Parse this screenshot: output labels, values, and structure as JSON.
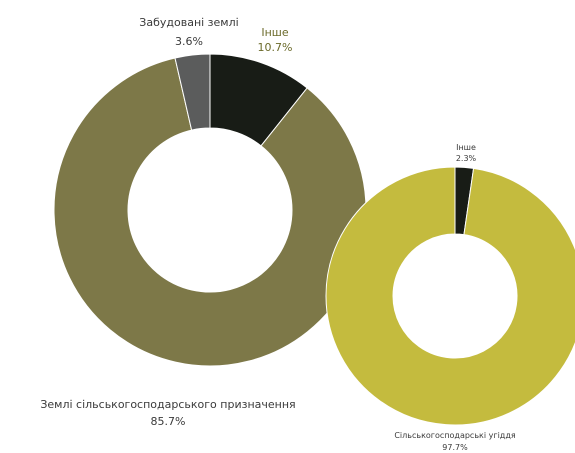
{
  "chart_data": [
    {
      "type": "pie",
      "variant": "donut",
      "slices": [
        {
          "label": "Інше",
          "value": 10.7,
          "value_label": "10.7%",
          "color": "#181c16",
          "label_color": "#6b6a2a"
        },
        {
          "label": "Землі сільськогосподарського призначення",
          "value": 85.7,
          "value_label": "85.7%",
          "color": "#7d7848",
          "label_color": "#3a3a3a"
        },
        {
          "label": "Забудовані землі",
          "value": 3.6,
          "value_label": "3.6%",
          "color": "#5b5c5c",
          "label_color": "#3a3a3a"
        }
      ]
    },
    {
      "type": "pie",
      "variant": "donut",
      "slices": [
        {
          "label": "Інше",
          "value": 2.3,
          "value_label": "2.3%",
          "color": "#181c16",
          "label_color": "#3a3a3a"
        },
        {
          "label": "Сільськогосподарські угіддя",
          "value": 97.7,
          "value_label": "97.7%",
          "color": "#c4bb3e",
          "label_color": "#3a3a3a"
        }
      ]
    }
  ]
}
